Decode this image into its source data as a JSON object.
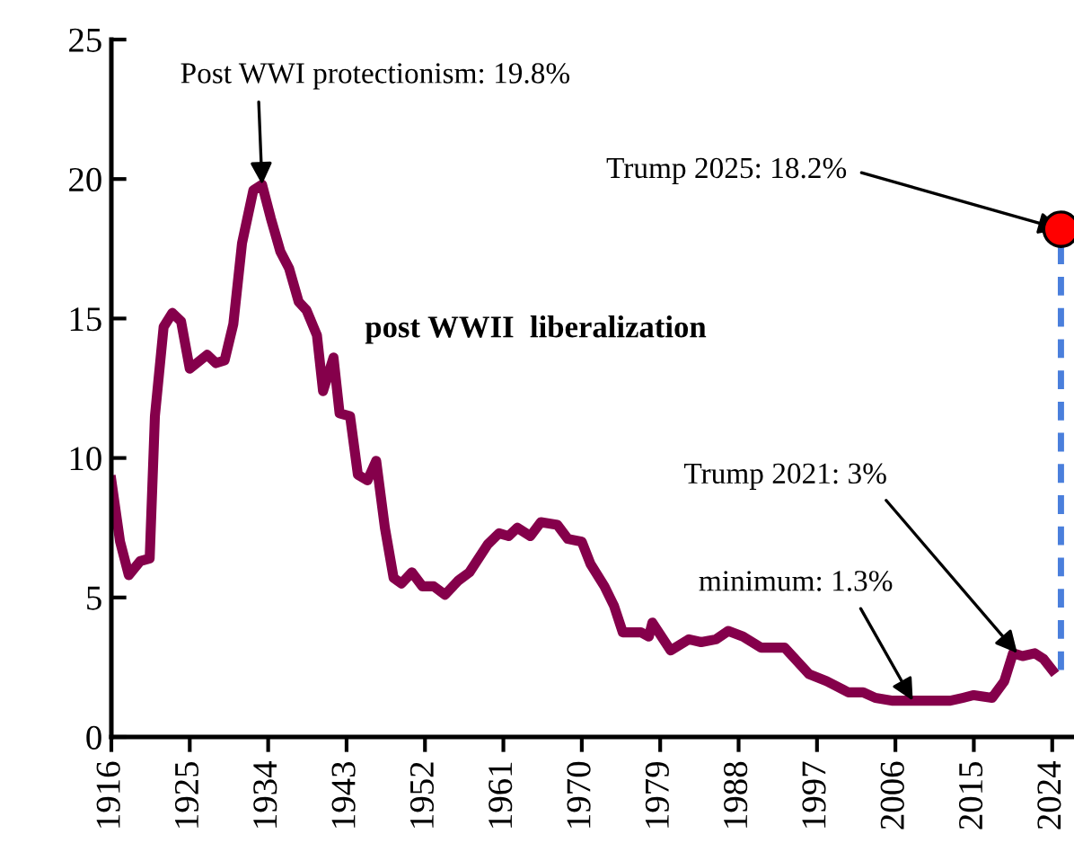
{
  "chart_data": {
    "type": "line",
    "xlim": [
      1916,
      2026.5
    ],
    "ylim": [
      0,
      25
    ],
    "xticks": [
      1916,
      1925,
      1934,
      1943,
      1952,
      1961,
      1970,
      1979,
      1988,
      1997,
      2006,
      2015,
      2024
    ],
    "yticks": [
      0,
      5,
      10,
      15,
      20,
      25
    ],
    "grid": false,
    "legend": false,
    "series": [
      {
        "type": "line",
        "color": "#85004b",
        "line_style": "solid",
        "x": [
          1916,
          1917,
          1918,
          1919.3,
          1920.4,
          1921,
          1922,
          1923,
          1924,
          1925,
          1927,
          1928,
          1929,
          1930,
          1931,
          1932.3,
          1933.3,
          1934.3,
          1935.4,
          1936.4,
          1937.5,
          1938.4,
          1939.6,
          1940.3,
          1941.5,
          1942.2,
          1943.4,
          1944.3,
          1945.4,
          1946.4,
          1947.4,
          1948.4,
          1949.3,
          1950.5,
          1951.7,
          1953,
          1954.3,
          1955.8,
          1957.1,
          1959.2,
          1960.5,
          1961.6,
          1962.6,
          1964.1,
          1965.3,
          1967.2,
          1968.4,
          1970,
          1971,
          1972.6,
          1973.7,
          1974.7,
          1976.8,
          1977.7,
          1978.1,
          1980.2,
          1982.3,
          1983.7,
          1985.4,
          1986.8,
          1988.5,
          1990.6,
          1993.3,
          1996.1,
          1998.1,
          2000.6,
          2002.3,
          2003.7,
          2005.7,
          2012.3,
          2013.7,
          2015,
          2017.1,
          2018.5,
          2019.5,
          2020.6,
          2022,
          2023,
          2024
        ],
        "values": [
          9.2,
          7.0,
          5.8,
          6.3,
          6.4,
          11.5,
          14.7,
          15.2,
          14.9,
          13.2,
          13.7,
          13.4,
          13.5,
          14.8,
          17.7,
          19.6,
          19.8,
          18.6,
          17.4,
          16.8,
          15.6,
          15.3,
          14.4,
          12.4,
          13.6,
          11.6,
          11.5,
          9.4,
          9.2,
          9.9,
          7.5,
          5.7,
          5.5,
          5.9,
          5.4,
          5.4,
          5.1,
          5.6,
          5.9,
          6.9,
          7.3,
          7.2,
          7.5,
          7.2,
          7.7,
          7.6,
          7.1,
          7.0,
          6.2,
          5.4,
          4.7,
          3.75,
          3.75,
          3.6,
          4.1,
          3.1,
          3.5,
          3.4,
          3.5,
          3.8,
          3.6,
          3.2,
          3.2,
          2.25,
          2.0,
          1.6,
          1.6,
          1.4,
          1.3,
          1.3,
          1.4,
          1.5,
          1.4,
          2.0,
          3.0,
          2.9,
          3.0,
          2.8,
          2.4
        ]
      },
      {
        "type": "line",
        "color": "#4a7fdc",
        "line_style": "dashed",
        "x": [
          2025,
          2025
        ],
        "values": [
          2.4,
          18.2
        ]
      },
      {
        "type": "scatter",
        "color": "#ff0000",
        "marker": "circle",
        "x": [
          2025
        ],
        "values": [
          18.2
        ]
      }
    ],
    "annotations": [
      {
        "text": "Post WWI protectionism: 19.8%",
        "x": 1933.3,
        "y": 19.8
      },
      {
        "text": "Trump 2025: 18.2%",
        "x": 2025,
        "y": 18.2
      },
      "post WWII  liberalization",
      {
        "text": "Trump 2021: 3%",
        "x": 2020,
        "y": 3.0
      },
      {
        "text": "minimum: 1.3%",
        "x": 2008,
        "y": 1.3
      }
    ]
  }
}
